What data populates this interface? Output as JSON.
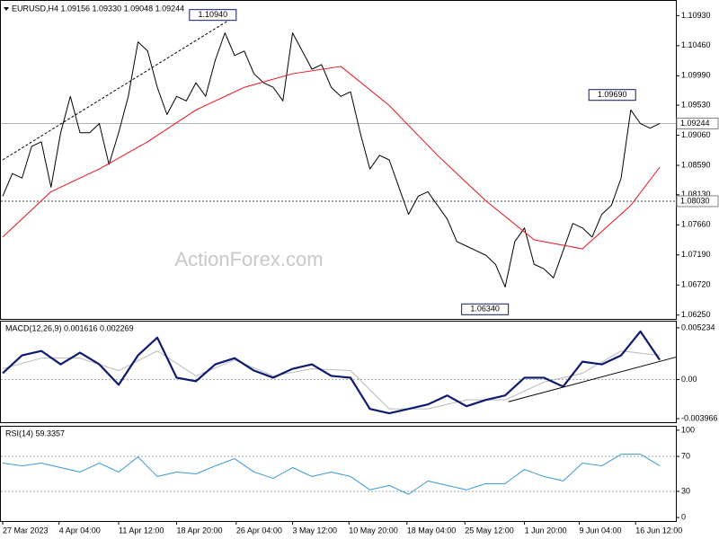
{
  "chart_data": [
    {
      "type": "line",
      "title": "EURUSD,H4  1.09156 1.09330 1.09048 1.09244",
      "watermark": "ActionForex.com",
      "xlim": [
        0,
        418
      ],
      "ylim": [
        1.0619,
        1.1116
      ],
      "yticks": [
        {
          "value": 1.1093,
          "label": "1.10930"
        },
        {
          "value": 1.1046,
          "label": "1.10460"
        },
        {
          "value": 1.0999,
          "label": "1.09990"
        },
        {
          "value": 1.0953,
          "label": "1.09530"
        },
        {
          "value": 1.0906,
          "label": "1.09060"
        },
        {
          "value": 1.0859,
          "label": "1.08590"
        },
        {
          "value": 1.0813,
          "label": "1.08130"
        },
        {
          "value": 1.0766,
          "label": "1.07660"
        },
        {
          "value": 1.0719,
          "label": "1.07190"
        },
        {
          "value": 1.0672,
          "label": "1.06720"
        },
        {
          "value": 1.0625,
          "label": "1.06250"
        }
      ],
      "series": [
        {
          "color": "#000000",
          "width": 1,
          "x": [
            0,
            6,
            12,
            18,
            24,
            30,
            36,
            42,
            48,
            54,
            60,
            66,
            72,
            78,
            84,
            90,
            96,
            102,
            108,
            114,
            120,
            126,
            132,
            138,
            144,
            150,
            156,
            162,
            168,
            174,
            180,
            186,
            192,
            198,
            204,
            210,
            216,
            222,
            228,
            234,
            240,
            246,
            252,
            258,
            264,
            270,
            276,
            282,
            288,
            294,
            300,
            306,
            312,
            318,
            324,
            330,
            336,
            342,
            348,
            354,
            360,
            366,
            372,
            378,
            384,
            390,
            396,
            402,
            408
          ],
          "values": [
            1.08107,
            1.08462,
            1.08391,
            1.08887,
            1.08958,
            1.08249,
            1.091,
            1.09668,
            1.091,
            1.091,
            1.09242,
            1.08604,
            1.091,
            1.09668,
            1.10519,
            1.10377,
            1.09809,
            1.09384,
            1.09668,
            1.09597,
            1.0988,
            1.09668,
            1.10235,
            1.1066,
            1.10306,
            1.10377,
            1.10022,
            1.0988,
            1.09809,
            1.09597,
            1.1066,
            1.10377,
            1.10093,
            1.10164,
            1.09809,
            1.09668,
            1.09739,
            1.091,
            1.08533,
            1.08746,
            1.08675,
            1.08249,
            1.07824,
            1.08107,
            1.08178,
            1.07965,
            1.07753,
            1.07398,
            1.07327,
            1.07256,
            1.07185,
            1.07043,
            1.06689,
            1.07398,
            1.07611,
            1.07043,
            1.06973,
            1.06831,
            1.07256,
            1.07682,
            1.07611,
            1.07469,
            1.07824,
            1.07965,
            1.08391,
            1.09455,
            1.09242,
            1.09171,
            1.09244
          ]
        },
        {
          "color": "#e8101a",
          "width": 1,
          "x": [
            0,
            30,
            60,
            90,
            120,
            150,
            180,
            210,
            240,
            270,
            300,
            330,
            360,
            390,
            408
          ],
          "values": [
            1.07469,
            1.08178,
            1.08533,
            1.08958,
            1.09455,
            1.09809,
            1.10022,
            1.10136,
            1.09526,
            1.08746,
            1.08036,
            1.07426,
            1.07285,
            1.07965,
            1.08561
          ]
        }
      ],
      "levels": [
        {
          "value": 1.09244,
          "label": "1.09244",
          "color": "#b0b0b0",
          "dash": false
        },
        {
          "value": 1.0803,
          "label": "1.08030",
          "color": "#404040",
          "dash": true
        }
      ],
      "trendlines": [
        {
          "x": [
            0,
            145
          ],
          "values": [
            1.08675,
            1.1093
          ],
          "color": "#000000",
          "dash": true
        }
      ],
      "annotations": [
        {
          "x": 145,
          "value": 1.1094,
          "label": "1.10940"
        },
        {
          "x": 393,
          "value": 1.0969,
          "label": "1.09690"
        },
        {
          "x": 314,
          "value": 1.0634,
          "label": "1.06340"
        }
      ]
    },
    {
      "type": "line",
      "title": "MACD(12,26,9) 0.001616 0.002269",
      "xlim": [
        0,
        418
      ],
      "ylim": [
        -0.00433,
        0.00586
      ],
      "yticks": [
        0.005234,
        {
          "value": 0,
          "label": "0.00"
        },
        -0.003966
      ],
      "series": [
        {
          "color": "#b8b8b8",
          "width": 1,
          "x": [
            0,
            24,
            48,
            72,
            96,
            120,
            144,
            168,
            192,
            216,
            240,
            264,
            288,
            312,
            336,
            360,
            384,
            408
          ],
          "values": [
            0.00108,
            0.00216,
            0.00216,
            0.0009,
            0.00289,
            0.00036,
            0.00198,
            0.00036,
            0.00108,
            0.0009,
            -0.00298,
            -0.00298,
            -0.00207,
            -0.00207,
            -0.00027,
            0.00063,
            0.00289,
            0.00244
          ]
        },
        {
          "color": "#0d1a6e",
          "width": 2.2,
          "x": [
            0,
            12,
            24,
            36,
            48,
            60,
            72,
            84,
            96,
            108,
            120,
            132,
            144,
            156,
            168,
            180,
            192,
            204,
            216,
            228,
            240,
            252,
            264,
            276,
            288,
            300,
            312,
            324,
            336,
            348,
            360,
            372,
            384,
            396,
            408
          ],
          "values": [
            0.00063,
            0.00244,
            0.00289,
            0.00153,
            0.00271,
            0.00153,
            -0.00054,
            0.00244,
            0.00424,
            0.00018,
            -0.00018,
            0.00153,
            0.00216,
            0.0009,
            0.00018,
            0.00108,
            0.00153,
            0.00036,
            0.00018,
            -0.00298,
            -0.00343,
            -0.00298,
            -0.00253,
            -0.00162,
            -0.00271,
            -0.00207,
            -0.00162,
            0.00018,
            0.00018,
            -0.00072,
            0.0018,
            0.00153,
            0.00244,
            0.00487,
            0.00198
          ]
        }
      ],
      "levels": [
        {
          "value": 0,
          "color": "#a0a0a0",
          "dash": true
        }
      ],
      "trendlines": [
        {
          "x": [
            314,
            418
          ],
          "values": [
            -0.00226,
            0.00226
          ],
          "color": "#000000",
          "dash": false
        }
      ]
    },
    {
      "type": "line",
      "title": "RSI(14) 59.3357",
      "xlim": [
        0,
        418
      ],
      "ylim": [
        -4,
        104
      ],
      "yticks": [
        100,
        70,
        30,
        0
      ],
      "xticks": [
        {
          "value": 0,
          "label": "27 Mar 2023"
        },
        {
          "value": 35,
          "label": "4 Apr 04:00"
        },
        {
          "value": 72,
          "label": "11 Apr 12:00"
        },
        {
          "value": 108,
          "label": "18 Apr 20:00"
        },
        {
          "value": 145,
          "label": "26 Apr 04:00"
        },
        {
          "value": 180,
          "label": "3 May 12:00"
        },
        {
          "value": 215,
          "label": "10 May 20:00"
        },
        {
          "value": 251,
          "label": "18 May 04:00"
        },
        {
          "value": 287,
          "label": "25 May 12:00"
        },
        {
          "value": 324,
          "label": "1 Jun 20:00"
        },
        {
          "value": 358,
          "label": "9 Jun 04:00"
        },
        {
          "value": 393,
          "label": "16 Jun 12:00"
        }
      ],
      "series": [
        {
          "color": "#3a96d8",
          "width": 1,
          "x": [
            0,
            12,
            24,
            36,
            48,
            60,
            72,
            84,
            96,
            108,
            120,
            132,
            144,
            156,
            168,
            180,
            192,
            204,
            216,
            228,
            240,
            252,
            264,
            276,
            288,
            300,
            312,
            324,
            336,
            348,
            360,
            372,
            384,
            396,
            408
          ],
          "values": [
            62.3,
            59.2,
            62.3,
            57.2,
            52.1,
            62.3,
            52.1,
            69.4,
            47,
            52.1,
            50,
            59.2,
            67.4,
            52.1,
            44.9,
            57.2,
            47,
            52.1,
            47,
            31.7,
            36.8,
            26.6,
            41.9,
            36.8,
            31.7,
            38.8,
            38.8,
            55.1,
            47,
            41.9,
            62.3,
            59.2,
            72.5,
            72.5,
            59.3
          ]
        }
      ],
      "levels": [
        {
          "value": 70,
          "color": "#a0a0a0",
          "dash": true
        },
        {
          "value": 30,
          "color": "#a0a0a0",
          "dash": true
        }
      ]
    }
  ]
}
